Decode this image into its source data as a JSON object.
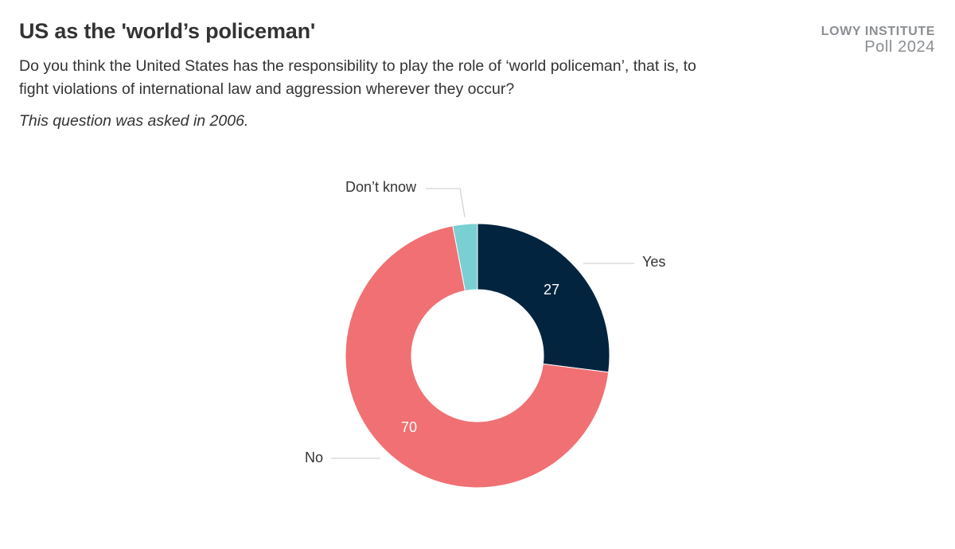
{
  "header": {
    "title": "US as the 'world’s policeman'",
    "subtitle": "Do you think the United States has the responsibility to play the role of ‘world policeman’, that is, to fight violations of international law and aggression wherever they occur?",
    "note": "This question was asked in 2006."
  },
  "brand": {
    "line1": "LOWY INSTITUTE",
    "line2": "Poll 2024"
  },
  "chart_data": {
    "type": "pie",
    "variant": "donut",
    "title": "US as the 'world’s policeman'",
    "slices": [
      {
        "label": "Yes",
        "value": 27,
        "color": "#03243e",
        "value_shown": "27"
      },
      {
        "label": "No",
        "value": 70,
        "color": "#f07073",
        "value_shown": "70"
      },
      {
        "label": "Don’t know",
        "value": 3,
        "color": "#79cfd1",
        "value_shown": ""
      }
    ],
    "legend": "none (labels placed beside slices)"
  }
}
